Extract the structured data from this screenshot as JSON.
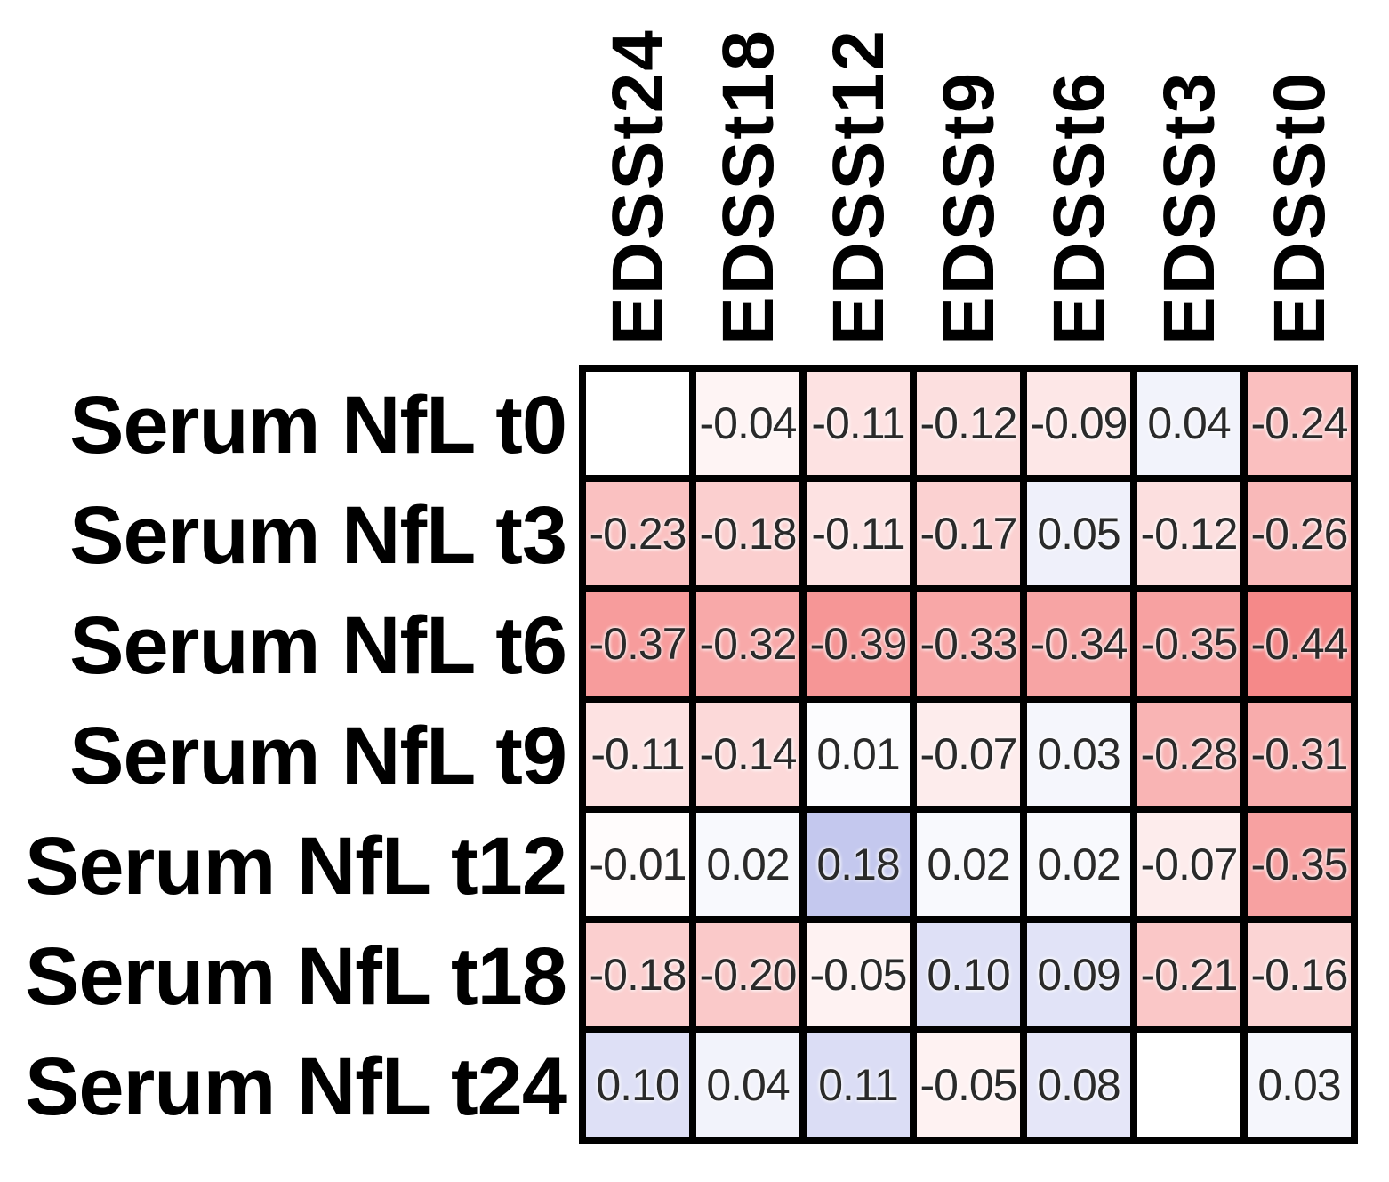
{
  "figure": {
    "kind": "correlation-heatmap",
    "title": ""
  },
  "chart_data": {
    "type": "heatmap",
    "columns": [
      "EDSSt24",
      "EDSSt18",
      "EDSSt12",
      "EDSSt9",
      "EDSSt6",
      "EDSSt3",
      "EDSSt0"
    ],
    "rows": [
      "Serum NfL t0",
      "Serum NfL t3",
      "Serum NfL t6",
      "Serum NfL t9",
      "Serum NfL t12",
      "Serum NfL t18",
      "Serum NfL t24"
    ],
    "values": [
      [
        null,
        -0.04,
        -0.11,
        -0.12,
        -0.09,
        0.04,
        -0.24
      ],
      [
        -0.23,
        -0.18,
        -0.11,
        -0.17,
        0.05,
        -0.12,
        -0.26
      ],
      [
        -0.37,
        -0.32,
        -0.39,
        -0.33,
        -0.34,
        -0.35,
        -0.44
      ],
      [
        -0.11,
        -0.14,
        0.01,
        -0.07,
        0.03,
        -0.28,
        -0.31
      ],
      [
        -0.01,
        0.02,
        0.18,
        0.02,
        0.02,
        -0.07,
        -0.35
      ],
      [
        -0.18,
        -0.2,
        -0.05,
        0.1,
        0.09,
        -0.21,
        -0.16
      ],
      [
        0.1,
        0.04,
        0.11,
        -0.05,
        0.08,
        null,
        0.03
      ]
    ],
    "value_decimals": 2,
    "color_scale": {
      "negative_color": "#F58989",
      "negative_full_at": 0.44,
      "positive_color": "#ADB2E8",
      "positive_full_at": 0.25,
      "neutral_color": "#FFFFFF"
    },
    "grid_color": "#000000",
    "value_text_color": "#2A2A2A",
    "label_text_color": "#000000",
    "legend": "none",
    "gridlines": "black cell borders"
  }
}
